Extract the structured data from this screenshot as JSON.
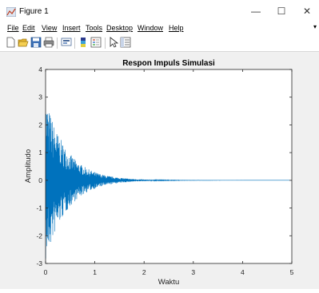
{
  "window": {
    "title": "Figure 1",
    "controls": {
      "minimize": "—",
      "maximize": "☐",
      "close": "✕"
    }
  },
  "menu": {
    "items": [
      "File",
      "Edit",
      "View",
      "Insert",
      "Tools",
      "Desktop",
      "Window",
      "Help"
    ],
    "overflow_arrow": "▾"
  },
  "toolbar": {
    "icons": [
      "new-figure-icon",
      "open-file-icon",
      "save-icon",
      "print-icon",
      "link-plot-icon",
      "insert-colorbar-icon",
      "insert-legend-icon",
      "pointer-icon",
      "property-inspector-icon"
    ]
  },
  "colors": {
    "series": "#0072bd",
    "axes_bg": "#ffffff",
    "figure_bg": "#f0f0f0"
  },
  "chart_data": {
    "type": "line",
    "title": "Respon Impuls Simulasi",
    "xlabel": "Waktu",
    "ylabel": "Amplitudo",
    "xlim": [
      0,
      5
    ],
    "ylim": [
      -3,
      4
    ],
    "xticks": [
      "0",
      "1",
      "2",
      "3",
      "4",
      "5"
    ],
    "yticks": [
      "4",
      "3",
      "2",
      "1",
      "0",
      "-1",
      "-2",
      "-3"
    ],
    "series": [
      {
        "envelope_description": "dense oscillation decaying exponentially, peak about 3 at t=0, negligible after t≈2",
        "peak": 3.0,
        "decay_rate": 2.3
      }
    ],
    "grid": false
  }
}
